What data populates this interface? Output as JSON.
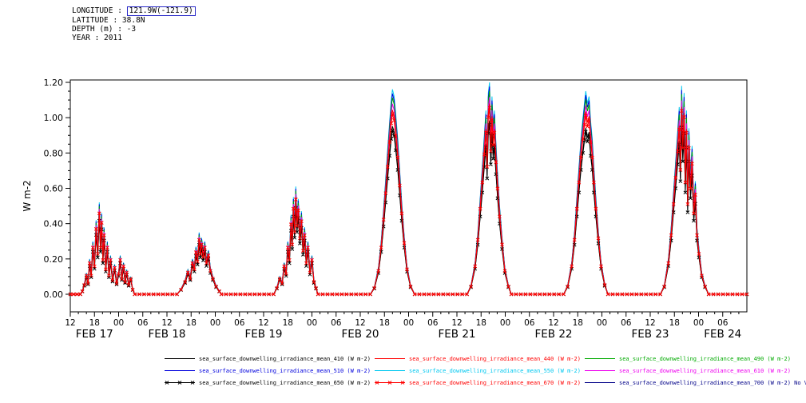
{
  "header": {
    "longitude_label": "LONGITUDE : ",
    "longitude_value": "121.9W(-121.9)",
    "latitude": "LATITUDE : 38.8N",
    "depth": "DEPTH (m) : -3",
    "year": "YEAR : 2011",
    "value_box_color": "#2929c8"
  },
  "chart_data": {
    "type": "line",
    "title": "",
    "ylabel": "W m-2",
    "ylim": [
      0.0,
      1.2
    ],
    "yticks": [
      {
        "value": 0.0,
        "label": "0.00"
      },
      {
        "value": 0.2,
        "label": "0.20"
      },
      {
        "value": 0.4,
        "label": "0.40"
      },
      {
        "value": 0.6,
        "label": "0.60"
      },
      {
        "value": 0.8,
        "label": "0.80"
      },
      {
        "value": 1.0,
        "label": "1.00"
      },
      {
        "value": 1.2,
        "label": "1.20"
      }
    ],
    "x_axis_range_hours": [
      12,
      180
    ],
    "xticks": {
      "start_hour": 12,
      "step_hours": 6,
      "labels": [
        "12",
        "18",
        "00",
        "06",
        "12",
        "18",
        "00",
        "06",
        "12",
        "18",
        "00",
        "06",
        "12",
        "18",
        "00",
        "06",
        "12",
        "18",
        "00",
        "06",
        "12",
        "18",
        "00",
        "06",
        "12",
        "18",
        "00",
        "06"
      ]
    },
    "day_labels": [
      {
        "t": 18,
        "label": "FEB 17"
      },
      {
        "t": 36,
        "label": "FEB 18"
      },
      {
        "t": 60,
        "label": "FEB 19"
      },
      {
        "t": 84,
        "label": "FEB 20"
      },
      {
        "t": 108,
        "label": "FEB 21"
      },
      {
        "t": 132,
        "label": "FEB 22"
      },
      {
        "t": 156,
        "label": "FEB 23"
      },
      {
        "t": 174,
        "label": "FEB 24"
      }
    ],
    "points": [
      [
        12,
        0
      ],
      [
        14.5,
        0
      ],
      [
        15,
        0.02
      ],
      [
        15.5,
        0.06
      ],
      [
        16,
        0.12
      ],
      [
        16.4,
        0.07
      ],
      [
        16.8,
        0.2
      ],
      [
        17.2,
        0.12
      ],
      [
        17.6,
        0.3
      ],
      [
        18,
        0.18
      ],
      [
        18.4,
        0.42
      ],
      [
        18.8,
        0.26
      ],
      [
        19.2,
        0.52
      ],
      [
        19.5,
        0.3
      ],
      [
        19.8,
        0.46
      ],
      [
        20.1,
        0.22
      ],
      [
        20.4,
        0.38
      ],
      [
        20.8,
        0.16
      ],
      [
        21.2,
        0.3
      ],
      [
        21.6,
        0.12
      ],
      [
        22,
        0.22
      ],
      [
        22.5,
        0.09
      ],
      [
        23,
        0.17
      ],
      [
        23.5,
        0.07
      ],
      [
        24,
        0.13
      ],
      [
        24.4,
        0.22
      ],
      [
        24.8,
        0.1
      ],
      [
        25.2,
        0.18
      ],
      [
        25.6,
        0.08
      ],
      [
        26,
        0.14
      ],
      [
        26.5,
        0.06
      ],
      [
        27,
        0.1
      ],
      [
        27.5,
        0.03
      ],
      [
        28,
        0
      ],
      [
        38.5,
        0
      ],
      [
        39.5,
        0.03
      ],
      [
        40.5,
        0.08
      ],
      [
        41.2,
        0.14
      ],
      [
        41.8,
        0.1
      ],
      [
        42.3,
        0.2
      ],
      [
        42.8,
        0.16
      ],
      [
        43.2,
        0.27
      ],
      [
        43.6,
        0.21
      ],
      [
        44,
        0.35
      ],
      [
        44.3,
        0.26
      ],
      [
        44.6,
        0.32
      ],
      [
        45,
        0.24
      ],
      [
        45.4,
        0.3
      ],
      [
        45.8,
        0.2
      ],
      [
        46.3,
        0.25
      ],
      [
        46.8,
        0.15
      ],
      [
        47.4,
        0.1
      ],
      [
        48.2,
        0.05
      ],
      [
        49,
        0.02
      ],
      [
        49.5,
        0
      ],
      [
        62.5,
        0
      ],
      [
        63.3,
        0.04
      ],
      [
        64,
        0.1
      ],
      [
        64.6,
        0.07
      ],
      [
        65.1,
        0.18
      ],
      [
        65.6,
        0.13
      ],
      [
        66,
        0.3
      ],
      [
        66.4,
        0.22
      ],
      [
        66.8,
        0.45
      ],
      [
        67.1,
        0.32
      ],
      [
        67.4,
        0.55
      ],
      [
        67.7,
        0.4
      ],
      [
        68,
        0.61
      ],
      [
        68.3,
        0.44
      ],
      [
        68.6,
        0.54
      ],
      [
        69,
        0.36
      ],
      [
        69.4,
        0.47
      ],
      [
        69.8,
        0.28
      ],
      [
        70.2,
        0.38
      ],
      [
        70.6,
        0.2
      ],
      [
        71,
        0.3
      ],
      [
        71.5,
        0.14
      ],
      [
        72,
        0.22
      ],
      [
        72.5,
        0.08
      ],
      [
        73,
        0.04
      ],
      [
        73.5,
        0
      ],
      [
        86.5,
        0
      ],
      [
        87.5,
        0.04
      ],
      [
        88.5,
        0.15
      ],
      [
        89.2,
        0.3
      ],
      [
        89.8,
        0.48
      ],
      [
        90.3,
        0.65
      ],
      [
        90.8,
        0.82
      ],
      [
        91.3,
        0.98
      ],
      [
        91.7,
        1.1
      ],
      [
        92,
        1.16
      ],
      [
        92.4,
        1.12
      ],
      [
        92.8,
        1.02
      ],
      [
        93.3,
        0.88
      ],
      [
        93.8,
        0.7
      ],
      [
        94.3,
        0.52
      ],
      [
        94.9,
        0.33
      ],
      [
        95.6,
        0.16
      ],
      [
        96.5,
        0.05
      ],
      [
        97.5,
        0
      ],
      [
        110.5,
        0
      ],
      [
        111.5,
        0.05
      ],
      [
        112.5,
        0.18
      ],
      [
        113.2,
        0.35
      ],
      [
        113.8,
        0.55
      ],
      [
        114.3,
        0.72
      ],
      [
        114.8,
        0.9
      ],
      [
        115.2,
        1.04
      ],
      [
        115.5,
        0.82
      ],
      [
        115.8,
        1.14
      ],
      [
        116.1,
        1.2
      ],
      [
        116.4,
        0.92
      ],
      [
        116.7,
        1.12
      ],
      [
        117,
        0.96
      ],
      [
        117.3,
        1.04
      ],
      [
        117.7,
        0.85
      ],
      [
        118.1,
        0.68
      ],
      [
        118.6,
        0.5
      ],
      [
        119.2,
        0.32
      ],
      [
        119.9,
        0.15
      ],
      [
        120.8,
        0.05
      ],
      [
        121.5,
        0
      ],
      [
        134.5,
        0
      ],
      [
        135.5,
        0.05
      ],
      [
        136.5,
        0.18
      ],
      [
        137.2,
        0.35
      ],
      [
        137.8,
        0.55
      ],
      [
        138.3,
        0.72
      ],
      [
        138.8,
        0.88
      ],
      [
        139.3,
        1
      ],
      [
        139.7,
        1.09
      ],
      [
        140,
        1.15
      ],
      [
        140.4,
        1.08
      ],
      [
        140.8,
        1.12
      ],
      [
        141.2,
        0.98
      ],
      [
        141.6,
        0.88
      ],
      [
        142,
        0.72
      ],
      [
        142.5,
        0.55
      ],
      [
        143.1,
        0.36
      ],
      [
        143.8,
        0.18
      ],
      [
        144.7,
        0.06
      ],
      [
        145.5,
        0
      ],
      [
        158.5,
        0
      ],
      [
        159.5,
        0.05
      ],
      [
        160.5,
        0.2
      ],
      [
        161.2,
        0.38
      ],
      [
        161.8,
        0.58
      ],
      [
        162.3,
        0.75
      ],
      [
        162.8,
        0.92
      ],
      [
        163.2,
        1.06
      ],
      [
        163.5,
        0.8
      ],
      [
        163.8,
        1.18
      ],
      [
        164.1,
        0.94
      ],
      [
        164.4,
        1.14
      ],
      [
        164.7,
        0.72
      ],
      [
        165,
        1.04
      ],
      [
        165.3,
        0.58
      ],
      [
        165.6,
        0.94
      ],
      [
        166,
        0.68
      ],
      [
        166.4,
        0.84
      ],
      [
        166.8,
        0.52
      ],
      [
        167.2,
        0.64
      ],
      [
        167.6,
        0.38
      ],
      [
        168.1,
        0.26
      ],
      [
        168.8,
        0.12
      ],
      [
        169.6,
        0.05
      ],
      [
        170.5,
        0
      ],
      [
        180,
        0
      ]
    ],
    "series": [
      {
        "id": "410",
        "label": "sea_surface_downwelling_irradiance_mean_410 (W m-2)",
        "color": "#000000",
        "scale": 0.82,
        "marker": false
      },
      {
        "id": "440",
        "label": "sea_surface_downwelling_irradiance_mean_440 (W m-2)",
        "color": "#ff0000",
        "scale": 0.9,
        "marker": false
      },
      {
        "id": "490",
        "label": "sea_surface_downwelling_irradiance_mean_490 (W m-2)",
        "color": "#00aa00",
        "scale": 0.96,
        "marker": false
      },
      {
        "id": "510",
        "label": "sea_surface_downwelling_irradiance_mean_510 (W m-2)",
        "color": "#0000dd",
        "scale": 0.98,
        "marker": false
      },
      {
        "id": "550",
        "label": "sea_surface_downwelling_irradiance_mean_550 (W m-2)",
        "color": "#00c8f0",
        "scale": 1.0,
        "marker": false
      },
      {
        "id": "610",
        "label": "sea_surface_downwelling_irradiance_mean_610 (W m-2)",
        "color": "#ee00ee",
        "scale": 0.93,
        "marker": false
      },
      {
        "id": "650",
        "label": "sea_surface_downwelling_irradiance_mean_650 (W m-2)",
        "color": "#000000",
        "scale": 0.8,
        "marker": true
      },
      {
        "id": "670",
        "label": "sea_surface_downwelling_irradiance_mean_670 (W m-2)",
        "color": "#ff0000",
        "scale": 0.88,
        "marker": true
      },
      {
        "id": "700",
        "label": "sea_surface_downwelling_irradiance_mean_700 (W m-2)",
        "color": "#000088",
        "scale": 0,
        "marker": false,
        "no_data": true,
        "note": "No Valid Data"
      }
    ],
    "legend_position": "bottom",
    "grid": false
  }
}
